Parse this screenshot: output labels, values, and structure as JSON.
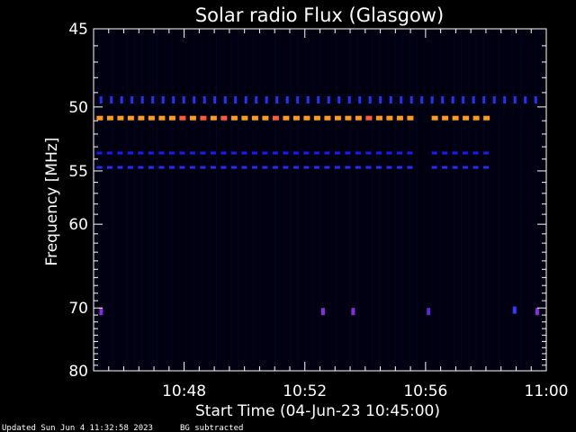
{
  "chart_data": {
    "type": "heatmap",
    "title": "Solar radio Flux (Glasgow)",
    "xlabel": "Start Time (04-Jun-23 10:45:00)",
    "ylabel": "Frequency [MHz]",
    "x_unit": "minutes after 10:45",
    "xlim": [
      0,
      15
    ],
    "ylim": [
      45,
      80
    ],
    "x_ticks": [
      {
        "value": 3,
        "label": "10:48"
      },
      {
        "value": 7,
        "label": "10:52"
      },
      {
        "value": 11,
        "label": "10:56"
      },
      {
        "value": 15,
        "label": "11:00"
      }
    ],
    "y_ticks": [
      {
        "value": 45,
        "label": "45"
      },
      {
        "value": 50,
        "label": "50"
      },
      {
        "value": 55,
        "label": "55"
      },
      {
        "value": 60,
        "label": "60"
      },
      {
        "value": 70,
        "label": "70"
      },
      {
        "value": 80,
        "label": "80"
      }
    ],
    "y_scale": "reciprocal",
    "background_color": "#000010",
    "bands": [
      {
        "frequency": 50.8,
        "x_start": 0.1,
        "x_end": 10.5,
        "gap_end": 11.2,
        "x_end2": 13.0,
        "color": "#ff9a1a",
        "accent": "#ff5a3a",
        "intensity": "high"
      },
      {
        "frequency": 49.5,
        "x_start": 0.2,
        "x_end": 14.9,
        "color": "#2233ff",
        "intensity": "medium"
      },
      {
        "frequency": 53.5,
        "x_start": 0.1,
        "x_end": 10.5,
        "gap_end": 11.2,
        "x_end2": 13.0,
        "color": "#1a1aff",
        "intensity": "medium"
      },
      {
        "frequency": 54.7,
        "x_start": 0.1,
        "x_end": 10.5,
        "gap_end": 11.2,
        "x_end2": 13.0,
        "color": "#2a2aff",
        "intensity": "medium"
      }
    ],
    "spots": [
      {
        "x": 0.25,
        "frequency": 70.5,
        "color": "#8a2be2"
      },
      {
        "x": 7.6,
        "frequency": 70.5,
        "color": "#8a2be2"
      },
      {
        "x": 8.6,
        "frequency": 70.5,
        "color": "#8a2be2"
      },
      {
        "x": 11.1,
        "frequency": 70.5,
        "color": "#5a2bd2"
      },
      {
        "x": 13.95,
        "frequency": 70.3,
        "color": "#3a3aff"
      },
      {
        "x": 14.7,
        "frequency": 70.5,
        "color": "#8a2be2"
      }
    ],
    "colors": {
      "axis": "#ffffff",
      "text": "#ffffff"
    }
  },
  "footer": {
    "updated": "Updated Sun Jun  4 11:32:58 2023",
    "note": "BG subtracted"
  }
}
